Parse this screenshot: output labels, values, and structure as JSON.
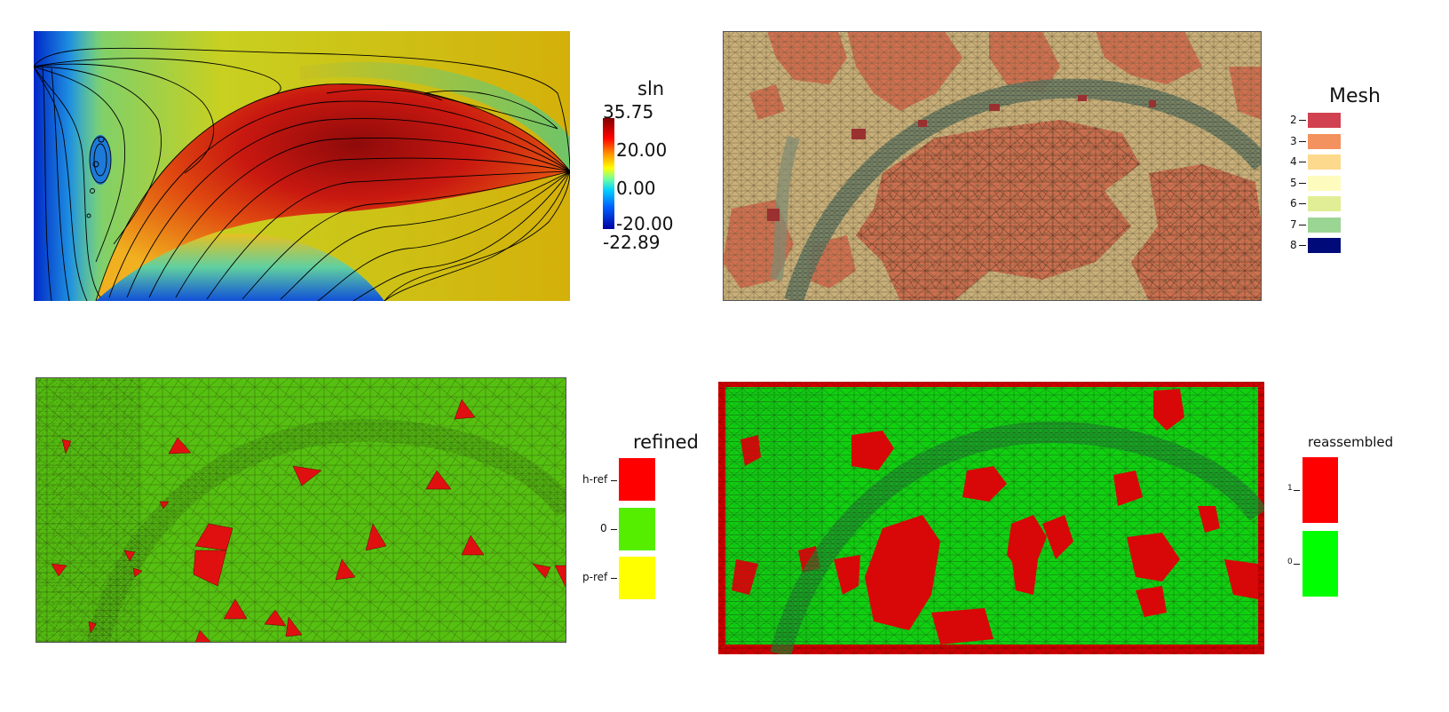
{
  "panels": {
    "solution": {
      "legend_title": "sln",
      "max_label": "35.75",
      "ticks": [
        "20.00",
        "0.00",
        "-20.00"
      ],
      "min_label": "-22.89"
    },
    "mesh": {
      "legend_title": "Mesh",
      "items": [
        {
          "label": "2",
          "color": "#d2414f"
        },
        {
          "label": "3",
          "color": "#f3925f"
        },
        {
          "label": "4",
          "color": "#fdd98d"
        },
        {
          "label": "5",
          "color": "#fefbbe"
        },
        {
          "label": "6",
          "color": "#e2ee95"
        },
        {
          "label": "7",
          "color": "#9bd593"
        },
        {
          "label": "8",
          "color": "#000b79"
        }
      ]
    },
    "refined": {
      "legend_title": "refined",
      "items": [
        {
          "label": "h-ref",
          "color": "#ff0000"
        },
        {
          "label": "0",
          "color": "#55ee00"
        },
        {
          "label": "p-ref",
          "color": "#ffff00"
        }
      ]
    },
    "reassembled": {
      "legend_title": "reassembled",
      "items": [
        {
          "label": "1",
          "color": "#ff0000"
        },
        {
          "label": "0",
          "color": "#00ff00"
        }
      ]
    }
  }
}
